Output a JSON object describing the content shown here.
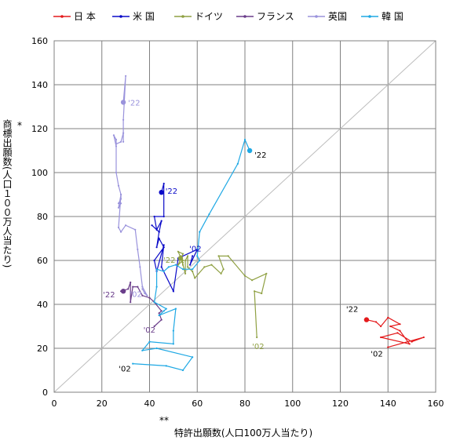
{
  "chart_data": {
    "type": "line",
    "xlabel": "特許出願数(人口100万人当たり)",
    "xlabel_mark": "**",
    "ylabel": "商標出願数(人口１００万人当たり)",
    "ylabel_mark": "*",
    "xlim": [
      0,
      160
    ],
    "ylim": [
      0,
      160
    ],
    "x_ticks": [
      "0",
      "20",
      "40",
      "60",
      "80",
      "100",
      "120",
      "140",
      "160"
    ],
    "y_ticks": [
      "0",
      "20",
      "40",
      "60",
      "80",
      "100",
      "120",
      "140",
      "160"
    ],
    "grid": true,
    "diagonal_reference": true,
    "legend_position": "top",
    "series": [
      {
        "name": "日 本",
        "color": "#e41a1c",
        "start_label": "'02",
        "end_label": "'22",
        "points": [
          [
            140,
            20.5
          ],
          [
            155,
            25
          ],
          [
            150,
            23
          ],
          [
            144,
            27
          ],
          [
            137,
            25
          ],
          [
            149,
            22
          ],
          [
            145,
            28
          ],
          [
            141,
            30
          ],
          [
            145,
            31
          ],
          [
            140,
            34
          ],
          [
            137,
            30
          ],
          [
            135,
            32
          ],
          [
            131,
            33
          ]
        ]
      },
      {
        "name": "米 国",
        "color": "#0a0ac8",
        "start_label": "'02",
        "end_label": "'22",
        "points": [
          [
            58,
            62
          ],
          [
            57,
            58
          ],
          [
            60,
            65
          ],
          [
            52,
            61
          ],
          [
            50,
            46
          ],
          [
            45,
            57
          ],
          [
            46,
            67
          ],
          [
            43,
            55
          ],
          [
            42,
            60
          ],
          [
            46,
            66
          ],
          [
            44,
            70
          ],
          [
            43,
            66
          ],
          [
            44,
            73
          ],
          [
            41,
            76
          ],
          [
            44,
            73
          ],
          [
            45,
            78
          ],
          [
            43,
            74
          ],
          [
            42,
            80
          ],
          [
            46,
            80
          ],
          [
            46,
            95
          ],
          [
            45,
            91
          ]
        ]
      },
      {
        "name": "ドイツ",
        "color": "#8fa042",
        "start_label": "'02",
        "end_label": "'22",
        "points": [
          [
            85,
            25
          ],
          [
            84,
            46
          ],
          [
            87,
            45
          ],
          [
            89,
            54
          ],
          [
            83,
            51
          ],
          [
            80,
            53
          ],
          [
            73,
            62
          ],
          [
            69,
            62
          ],
          [
            71,
            56
          ],
          [
            70,
            54
          ],
          [
            66,
            58
          ],
          [
            63,
            57
          ],
          [
            59,
            52
          ],
          [
            58,
            55
          ],
          [
            56,
            57
          ],
          [
            56,
            62
          ],
          [
            55,
            60
          ],
          [
            55,
            54
          ],
          [
            54,
            58
          ],
          [
            53,
            62
          ],
          [
            54,
            60
          ],
          [
            52,
            58
          ],
          [
            54,
            63
          ],
          [
            52,
            64
          ],
          [
            54,
            59
          ],
          [
            53,
            61
          ]
        ]
      },
      {
        "name": "フランス",
        "color": "#6a3d8a",
        "start_label": "'02",
        "end_label": "'22",
        "points": [
          [
            42,
            30
          ],
          [
            45,
            33
          ],
          [
            44,
            36
          ],
          [
            45,
            37
          ],
          [
            42,
            41
          ],
          [
            40,
            43
          ],
          [
            37,
            44
          ],
          [
            35,
            48
          ],
          [
            33,
            48
          ],
          [
            32,
            41
          ],
          [
            32,
            50
          ],
          [
            31,
            47
          ],
          [
            28,
            46
          ],
          [
            29,
            46
          ]
        ]
      },
      {
        "name": "英国",
        "color": "#9a93dc",
        "start_label": "'02",
        "end_label": "'22",
        "points": [
          [
            37,
            47
          ],
          [
            38,
            45
          ],
          [
            39,
            44
          ],
          [
            37,
            48
          ],
          [
            36,
            57
          ],
          [
            35,
            65
          ],
          [
            34,
            74
          ],
          [
            30,
            76
          ],
          [
            28,
            73
          ],
          [
            27,
            75
          ],
          [
            28,
            90
          ],
          [
            28,
            88
          ],
          [
            27,
            86
          ],
          [
            28,
            86
          ],
          [
            27,
            84
          ],
          [
            28,
            90
          ],
          [
            27,
            94
          ],
          [
            26,
            100
          ],
          [
            26,
            112
          ],
          [
            25,
            117
          ],
          [
            26,
            115
          ],
          [
            26,
            113
          ],
          [
            28,
            114
          ],
          [
            29,
            118
          ],
          [
            29,
            114
          ],
          [
            29,
            124
          ],
          [
            30,
            144
          ],
          [
            29,
            132
          ]
        ]
      },
      {
        "name": "韓 国",
        "color": "#1ea8e4",
        "start_label": "'02",
        "end_label": "'22",
        "points": [
          [
            33,
            13
          ],
          [
            47,
            12
          ],
          [
            54,
            10
          ],
          [
            58,
            16
          ],
          [
            43,
            20
          ],
          [
            37,
            19
          ],
          [
            40,
            23
          ],
          [
            50,
            22
          ],
          [
            50,
            28
          ],
          [
            51,
            38
          ],
          [
            44,
            35
          ],
          [
            46,
            37
          ],
          [
            47,
            38
          ],
          [
            42,
            41
          ],
          [
            43,
            48
          ],
          [
            43,
            56
          ],
          [
            46,
            55
          ],
          [
            48,
            57
          ],
          [
            51,
            58
          ],
          [
            54,
            56
          ],
          [
            58,
            56
          ],
          [
            61,
            60
          ],
          [
            60,
            62
          ],
          [
            61,
            73
          ],
          [
            65,
            81
          ],
          [
            77,
            104
          ],
          [
            80,
            115
          ],
          [
            82,
            110
          ]
        ]
      }
    ]
  }
}
